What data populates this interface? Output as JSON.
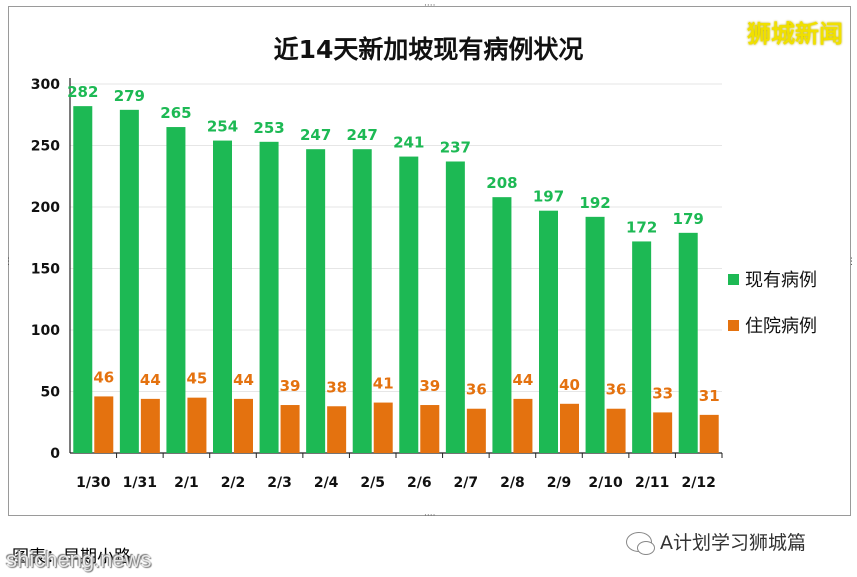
{
  "brand": "狮城新闻",
  "footer": {
    "caption": "图表：早期小路",
    "watermark": "shicheng.news",
    "wechat_account": "A计划学习狮城篇"
  },
  "colors": {
    "current": "#1db954",
    "hospitalized": "#e4720f",
    "grid": "#e6e6e6"
  },
  "chart_data": {
    "type": "bar",
    "title": "近14天新加坡现有病例状况",
    "categories": [
      "1/30",
      "1/31",
      "2/1",
      "2/2",
      "2/3",
      "2/4",
      "2/5",
      "2/6",
      "2/7",
      "2/8",
      "2/9",
      "2/10",
      "2/11",
      "2/12"
    ],
    "series": [
      {
        "name": "现有病例",
        "values": [
          282,
          279,
          265,
          254,
          253,
          247,
          247,
          241,
          237,
          208,
          197,
          192,
          172,
          179
        ]
      },
      {
        "name": "住院病例",
        "values": [
          46,
          44,
          45,
          44,
          39,
          38,
          41,
          39,
          36,
          44,
          40,
          36,
          33,
          31
        ]
      }
    ],
    "xlabel": "",
    "ylabel": "",
    "ylim": [
      0,
      300
    ],
    "yticks": [
      0,
      50,
      100,
      150,
      200,
      250,
      300
    ],
    "grid": true,
    "legend_position": "right"
  }
}
